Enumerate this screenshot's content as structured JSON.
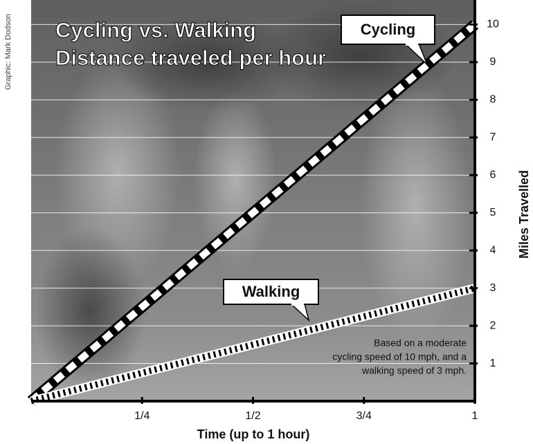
{
  "chart_data": {
    "type": "line",
    "title": "Cycling vs. Walking",
    "subtitle": "Distance traveled per hour",
    "credit": "Graphic: Mark Dodson",
    "x_label": "Time (up to 1 hour)",
    "y_label": "Miles Travelled",
    "x": [
      0,
      1
    ],
    "series": [
      {
        "name": "Cycling",
        "color": "#ffffff",
        "values": [
          0,
          10
        ]
      },
      {
        "name": "Walking",
        "color": "#ffffff",
        "values": [
          0,
          3
        ]
      }
    ],
    "note": [
      "Based on a moderate",
      "cycling speed of 10 mph, and a",
      "walking speed of 3 mph."
    ],
    "xlim": [
      0,
      1
    ],
    "xticks": [
      {
        "value": 0.25,
        "label": "1/4"
      },
      {
        "value": 0.5,
        "label": "1/2"
      },
      {
        "value": 0.75,
        "label": "3/4"
      },
      1
    ],
    "ylim": [
      0,
      10.65
    ],
    "yticks": [
      1,
      2,
      3,
      4,
      5,
      6,
      7,
      8,
      9,
      10
    ],
    "grid": true
  }
}
